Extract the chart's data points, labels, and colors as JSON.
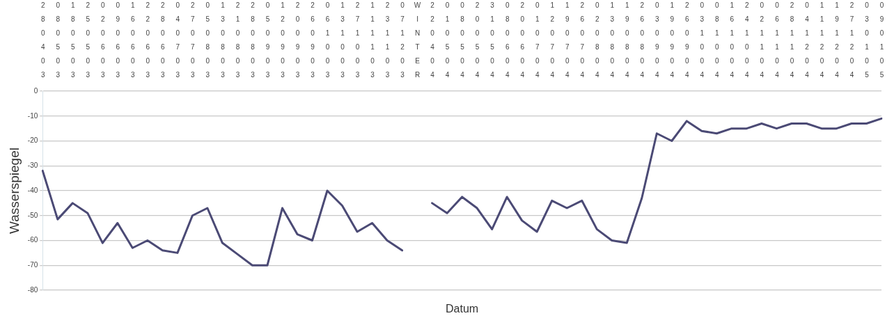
{
  "chart_data": {
    "type": "line",
    "xlabel": "Datum",
    "ylabel": "Wasserspiegel",
    "categories": [
      "280403",
      "080503",
      "180503",
      "250503",
      "020603",
      "090603",
      "160603",
      "220603",
      "280603",
      "040703",
      "270703",
      "050803",
      "130803",
      "210803",
      "280803",
      "050903",
      "120903",
      "200903",
      "260903",
      "061003",
      "131003",
      "271003",
      "111103",
      "231103",
      "071203",
      "WINTER",
      "220404",
      "010504",
      "080504",
      "200504",
      "310504",
      "080604",
      "200604",
      "010704",
      "120704",
      "190704",
      "260704",
      "020804",
      "130804",
      "190804",
      "260804",
      "030904",
      "190904",
      "260904",
      "031004",
      "081004",
      "161004",
      "241004",
      "021104",
      "061104",
      "281104",
      "041204",
      "111204",
      "191204",
      "271204",
      "030105",
      "090105"
    ],
    "series": [
      {
        "color": "#4b4a75",
        "values": [
          -32,
          -51.5,
          -45,
          -49,
          -61,
          -53,
          -63,
          -60,
          -64,
          -65,
          -50,
          -47,
          -61,
          -65.5,
          -70,
          -70,
          -47,
          -57.5,
          -60,
          -40,
          -46,
          -56.5,
          -53,
          -60,
          -64,
          null,
          -45,
          -49,
          -42.5,
          -47,
          -55.5,
          -42.5,
          -52,
          -56.5,
          -44,
          -47,
          -44,
          -55.5,
          -60,
          -61,
          -43,
          -17,
          -20,
          -12,
          -16,
          -17,
          -15,
          -15,
          -13,
          -15,
          -13,
          -13,
          -15,
          -15,
          -13,
          -13,
          -11
        ]
      }
    ],
    "ylim": [
      -80,
      0
    ],
    "yticks": [
      -80,
      -70,
      -60,
      -50,
      -40,
      -30,
      -20,
      -10,
      0
    ],
    "grid": "y",
    "legend": false,
    "marker": "none",
    "line_style": "solid"
  }
}
